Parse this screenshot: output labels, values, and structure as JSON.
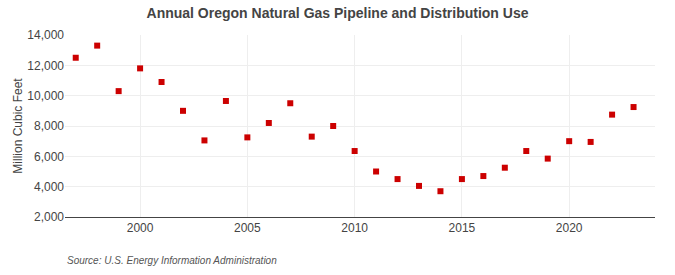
{
  "chart_data": {
    "type": "scatter",
    "title": "Annual Oregon Natural Gas Pipeline and Distribution Use",
    "ylabel": "Million Cubic Feet",
    "source": "Source: U.S. Energy Information Administration",
    "x": [
      1997,
      1998,
      1999,
      2000,
      2001,
      2002,
      2003,
      2004,
      2005,
      2006,
      2007,
      2008,
      2009,
      2010,
      2011,
      2012,
      2013,
      2014,
      2015,
      2016,
      2017,
      2018,
      2019,
      2020,
      2021,
      2022,
      2023
    ],
    "values": [
      12500,
      13300,
      10300,
      11800,
      10900,
      9000,
      7050,
      9650,
      7250,
      8200,
      9500,
      7300,
      8000,
      6350,
      5000,
      4500,
      4050,
      3700,
      4500,
      4700,
      5250,
      6350,
      5850,
      7000,
      6950,
      8750,
      9250
    ],
    "color": "#cc0000",
    "marker": "square",
    "xlim": [
      1996.5,
      2024
    ],
    "xticks": [
      2000,
      2005,
      2010,
      2015,
      2020
    ],
    "ylim": [
      2000,
      14000
    ],
    "yticks": [
      {
        "value": 2000,
        "label": "2,000"
      },
      {
        "value": 4000,
        "label": "4,000"
      },
      {
        "value": 6000,
        "label": "6,000"
      },
      {
        "value": 8000,
        "label": "8,000"
      },
      {
        "value": 10000,
        "label": "10,000"
      },
      {
        "value": 12000,
        "label": "12,000"
      },
      {
        "value": 14000,
        "label": "14,000"
      }
    ],
    "grid": true
  }
}
